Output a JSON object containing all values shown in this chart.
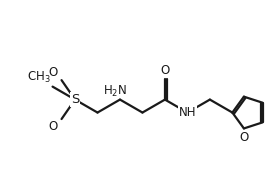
{
  "background_color": "#ffffff",
  "line_color": "#1a1a1a",
  "text_color": "#1a1a1a",
  "line_width": 1.6,
  "font_size": 8.5,
  "figsize": [
    2.78,
    1.79
  ],
  "dpi": 100,
  "xlim": [
    -1.8,
    7.8
  ],
  "ylim": [
    -2.2,
    2.0
  ]
}
